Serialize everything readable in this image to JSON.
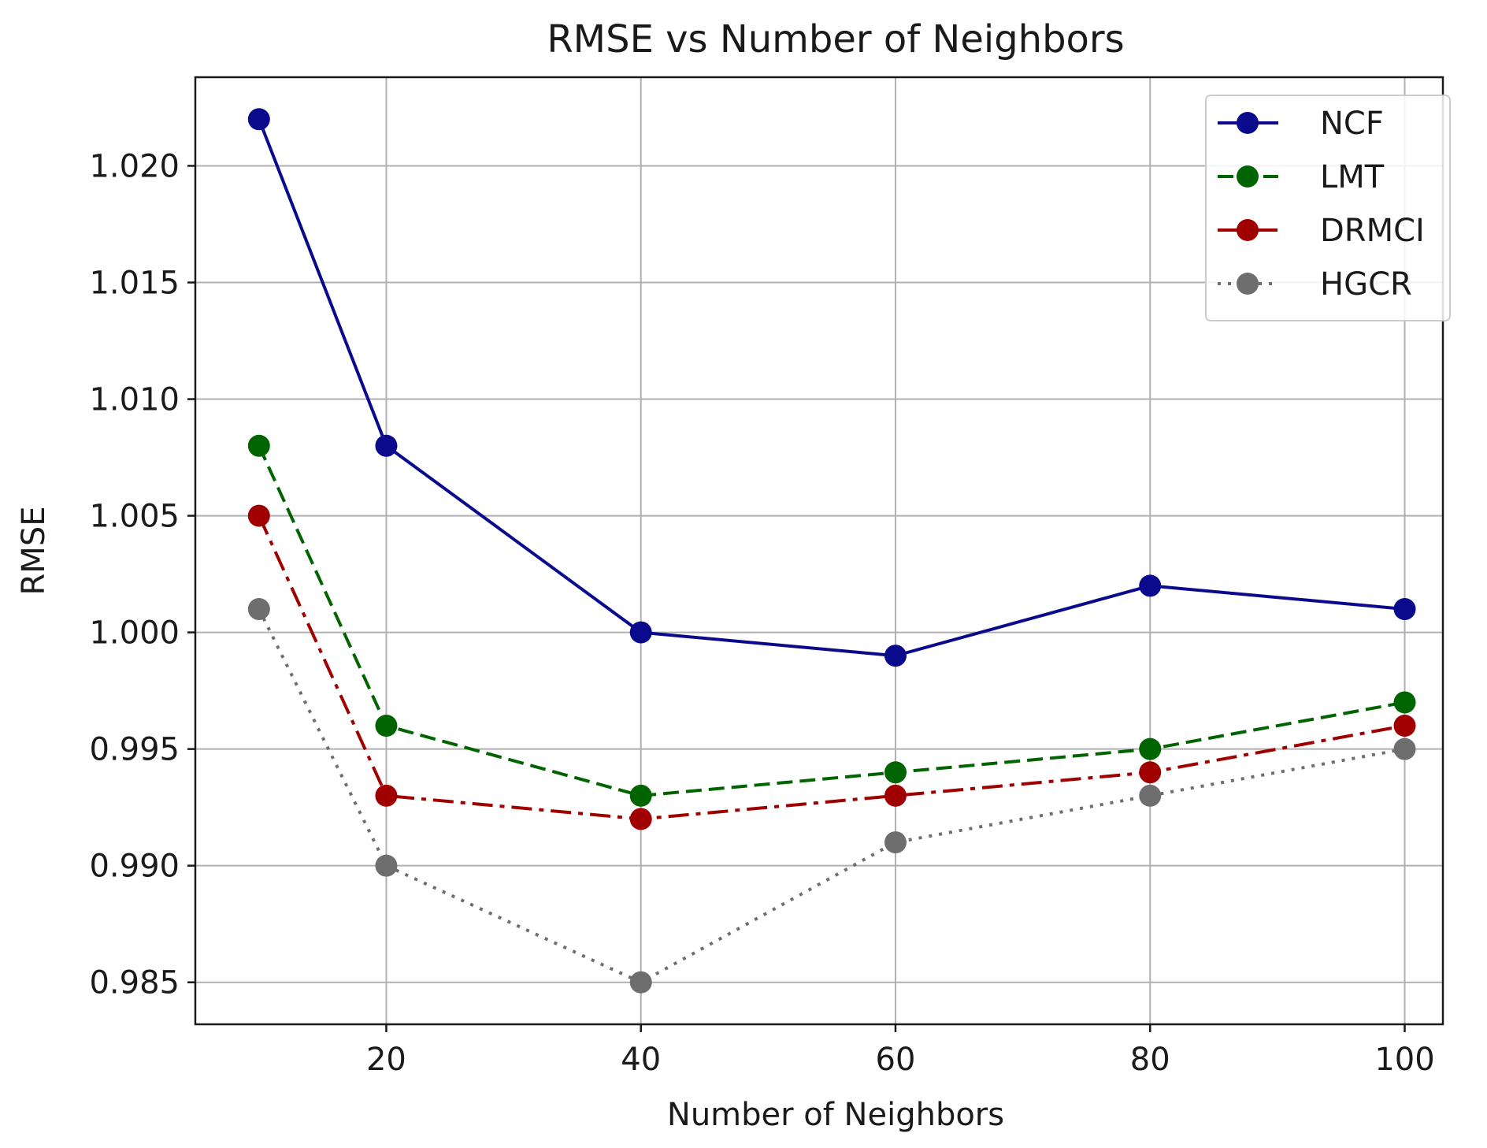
{
  "chart_data": {
    "type": "line",
    "title": "RMSE vs Number of Neighbors",
    "xlabel": "Number of Neighbors",
    "ylabel": "RMSE",
    "x": [
      10,
      20,
      40,
      60,
      80,
      100
    ],
    "xlim": [
      5,
      103
    ],
    "ylim": [
      0.9832,
      1.0238
    ],
    "xticks": [
      20,
      40,
      60,
      80,
      100
    ],
    "xtick_labels": [
      "20",
      "40",
      "60",
      "80",
      "100"
    ],
    "yticks": [
      0.985,
      0.99,
      0.995,
      1.0,
      1.005,
      1.01,
      1.015,
      1.02
    ],
    "ytick_labels": [
      "0.985",
      "0.990",
      "0.995",
      "1.000",
      "1.005",
      "1.010",
      "1.015",
      "1.020"
    ],
    "grid": true,
    "legend_position": "top-right",
    "series": [
      {
        "name": "NCF",
        "values": [
          1.022,
          1.008,
          1.0,
          0.999,
          1.002,
          1.001
        ],
        "color": "#0a0a8c",
        "linestyle": "solid"
      },
      {
        "name": "LMT",
        "values": [
          1.008,
          0.996,
          0.993,
          0.994,
          0.995,
          0.997
        ],
        "color": "#006400",
        "linestyle": "dashed"
      },
      {
        "name": "DRMCI",
        "values": [
          1.005,
          0.993,
          0.992,
          0.993,
          0.994,
          0.996
        ],
        "color": "#a00000",
        "linestyle": "dashdot"
      },
      {
        "name": "HGCR",
        "values": [
          1.001,
          0.99,
          0.985,
          0.991,
          0.993,
          0.995
        ],
        "color": "#6e6e6e",
        "linestyle": "dotted"
      }
    ]
  }
}
